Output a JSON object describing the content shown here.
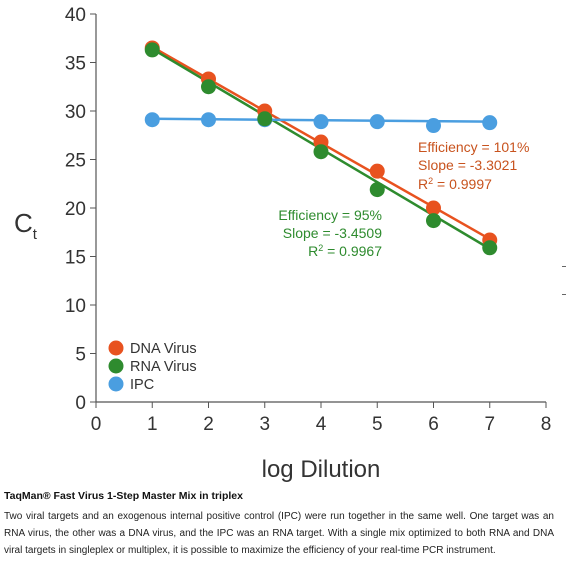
{
  "chart_data": {
    "type": "scatter",
    "title": "",
    "xlabel": "log Dilution",
    "ylabel_main": "C",
    "ylabel_sub": "t",
    "xlim": [
      0,
      8
    ],
    "ylim": [
      0,
      40
    ],
    "x_ticks": [
      "0",
      "1",
      "2",
      "3",
      "4",
      "5",
      "6",
      "7",
      "8"
    ],
    "y_ticks": [
      "0",
      "5",
      "10",
      "15",
      "20",
      "25",
      "30",
      "35",
      "40"
    ],
    "x": [
      1,
      2,
      3,
      4,
      5,
      6,
      7
    ],
    "series": [
      {
        "name": "DNA Virus",
        "color": "#e8521f",
        "values": [
          36.5,
          33.3,
          30.0,
          26.8,
          23.8,
          20.0,
          16.7
        ],
        "fit": [
          36.6,
          16.8
        ]
      },
      {
        "name": "RNA Virus",
        "color": "#2e8b2e",
        "values": [
          36.3,
          32.5,
          29.2,
          25.8,
          21.9,
          18.7,
          15.9
        ],
        "fit": [
          36.4,
          15.8
        ]
      },
      {
        "name": "IPC",
        "color": "#4a9ee0",
        "values": [
          29.1,
          29.1,
          29.1,
          28.9,
          28.9,
          28.5,
          28.8
        ],
        "fit": [
          29.2,
          28.9
        ]
      }
    ],
    "annotations": {
      "dna": {
        "efficiency": "Efficiency = 101%",
        "slope": "Slope = -3.3021",
        "r2_prefix": "R",
        "r2_sup": "2",
        "r2_value": " = 0.9997",
        "color": "#c8531e"
      },
      "rna": {
        "efficiency": "Efficiency = 95%",
        "slope": "Slope = -3.4509",
        "r2_prefix": "R",
        "r2_sup": "2",
        "r2_value": " = 0.9967",
        "color": "#2e8b2e"
      }
    },
    "legend_position": "bottom-left",
    "grid": false
  },
  "caption": {
    "title": "TaqMan® Fast Virus 1-Step Master Mix in triplex",
    "body": "Two viral targets and an exogenous internal positive control (IPC) were run together in the same well. One target was an RNA virus, the other was a DNA virus, and the IPC was an RNA target. With a single mix optimized to both RNA and DNA viral targets in singleplex or multiplex, it is possible to maximize the efficiency of your real-time PCR instrument."
  }
}
